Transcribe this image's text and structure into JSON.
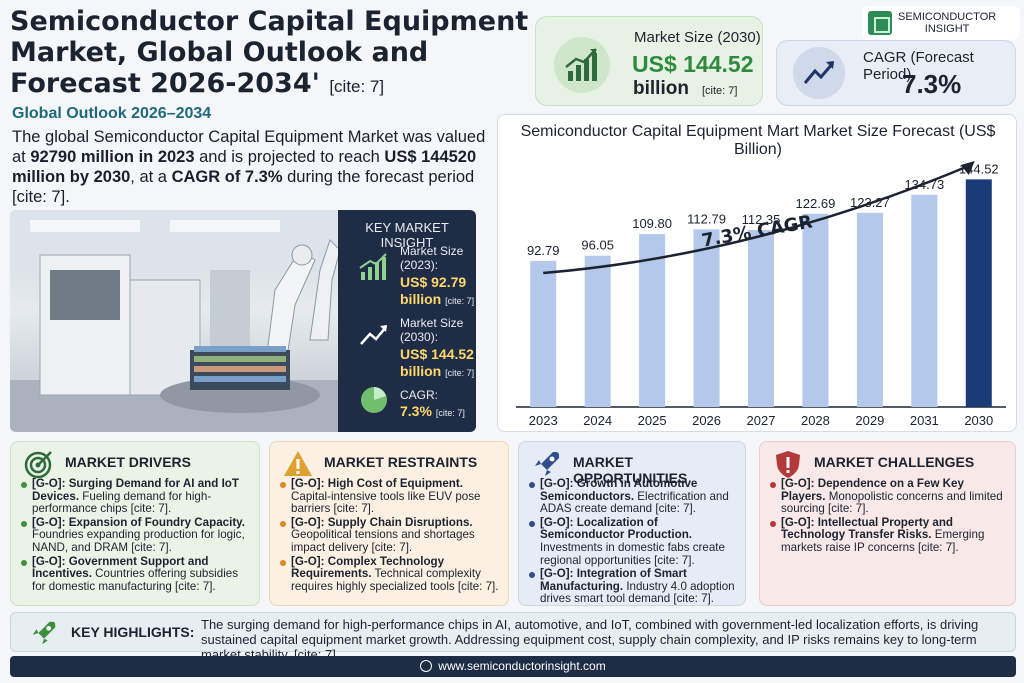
{
  "header": {
    "title": "Semiconductor Capital Equipment Market, Global Outlook and Forecast 2026-2034'",
    "title_cite": "[cite: 7]",
    "subtitle": "Global Outlook 2026–2034",
    "intro": {
      "p1": "The global Semiconductor Capital Equipment Market was valued at ",
      "b1": "92790 million in 2023",
      "p2": " and is projected to reach ",
      "b2": "US$ 144520 million by 2030",
      "p3": ", at a ",
      "b3": "CAGR of 7.3%",
      "p4": " during the forecast period [cite: 7]."
    }
  },
  "logo": {
    "line1": "SEMICONDUCTOR",
    "line2": "INSIGHT"
  },
  "kpi_market_size": {
    "label": "Market Size (2030)",
    "value": "US$ 144.52",
    "unit": "billion",
    "cite": "[cite: 7]"
  },
  "kpi_cagr": {
    "label": "CAGR (Forecast Period)",
    "value": "7.3%"
  },
  "key_insight": {
    "header": "KEY MARKET INSIGHT",
    "item1_label_a": "Market Size",
    "item1_label_b": "(2023):",
    "item1_value_a": "US$ 92.79",
    "item1_value_b": "billion",
    "item1_cite": "[cite: 7]",
    "item2_label_a": "Market Size",
    "item2_label_b": "(2030):",
    "item2_value_a": "US$ 144.52",
    "item2_value_b": "billion",
    "item2_cite": "[cite: 7]",
    "item3_label": "CAGR:",
    "item3_value": "7.3%",
    "item3_cite": "[cite: 7]"
  },
  "chart_data": {
    "type": "bar",
    "title": "Semiconductor Capital Equipment Mart Market Size Forecast (US$ Billion)",
    "categories": [
      "2023",
      "2024",
      "2025",
      "2026",
      "2027",
      "2028",
      "2029",
      "2031",
      "2030"
    ],
    "values": [
      92.79,
      96.05,
      109.8,
      112.79,
      112.35,
      122.69,
      123.27,
      134.73,
      144.52
    ],
    "value_labels": [
      "92.79",
      "96.05",
      "109.80",
      "112.79",
      "112.35",
      "122.69",
      "123.27",
      "134.73",
      "144.52"
    ],
    "annotation": "7.3% CAGR",
    "ylim": [
      0,
      160
    ],
    "grid": false,
    "bar_color": "#b3c8ea",
    "highlight_color": "#1b3a78"
  },
  "drivers": {
    "title": "MARKET DRIVERS",
    "items": [
      {
        "bold": "[G-O]: Surging Demand for AI and IoT Devices.",
        "text": " Fueling demand for high-performance chips [cite: 7]."
      },
      {
        "bold": "[G-O]: Expansion of Foundry Capacity.",
        "text": " Foundries expanding production for logic, NAND, and DRAM [cite: 7]."
      },
      {
        "bold": "[G-O]: Government Support and Incentives.",
        "text": " Countries offering subsidies for domestic manufacturing [cite: 7]."
      }
    ]
  },
  "restraints": {
    "title": "MARKET RESTRAINTS",
    "items": [
      {
        "bold": "[G-O]: High Cost of Equipment.",
        "text": " Capital-intensive tools like EUV pose barriers [cite: 7]."
      },
      {
        "bold": "[G-O]: Supply Chain Disruptions.",
        "text": " Geopolitical tensions and shortages impact delivery [cite: 7]."
      },
      {
        "bold": "[G-O]: Complex Technology Requirements.",
        "text": " Technical complexity requires highly specialized tools [cite: 7]."
      }
    ]
  },
  "opportunities": {
    "title": "MARKET OPPORTUNITIES",
    "items": [
      {
        "bold": "[G-O]: Growth in Automotive Semiconductors.",
        "text": " Electrification and ADAS create demand [cite: 7]."
      },
      {
        "bold": "[G-O]: Localization of Semiconductor Production.",
        "text": " Investments in domestic fabs create regional opportunities [cite: 7]."
      },
      {
        "bold": "[G-O]: Integration of Smart Manufacturing.",
        "text": " Industry 4.0 adoption drives smart tool demand [cite: 7]."
      }
    ]
  },
  "challenges": {
    "title": "MARKET CHALLENGES",
    "items": [
      {
        "bold": "[G-O]: Dependence on a Few Key Players.",
        "text": " Monopolistic concerns and limited sourcing [cite: 7]."
      },
      {
        "bold": "[G-O]: Intellectual Property and Technology Transfer Risks.",
        "text": " Emerging markets raise IP concerns [cite: 7]."
      }
    ]
  },
  "highlights": {
    "label": "KEY HIGHLIGHTS:",
    "text": "The surging demand for high-performance chips in AI, automotive, and IoT, combined with government-led localization efforts, is driving sustained capital equipment market growth. Addressing equipment cost, supply chain complexity, and IP risks remains key to long-term market stability. [cite: 7]."
  },
  "footer": {
    "url": "www.semiconductorinsight.com"
  },
  "icons": [
    "growth-chart-icon",
    "trend-arrow-icon",
    "target-icon",
    "warning-icon",
    "rocket-icon",
    "shield-alert-icon",
    "globe-icon",
    "pie-icon",
    "chip-icon"
  ]
}
